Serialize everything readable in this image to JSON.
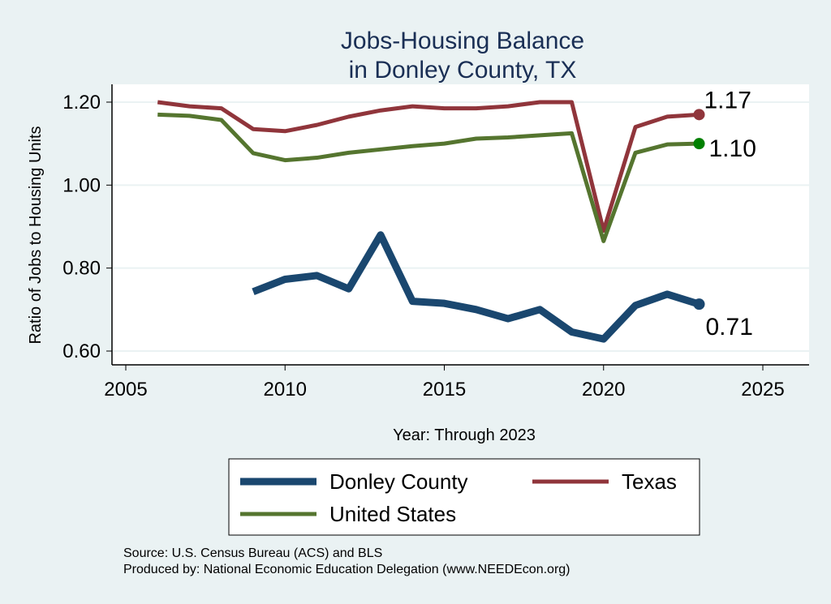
{
  "chart_data": {
    "type": "line",
    "title": [
      "Jobs-Housing Balance",
      "in Donley County, TX"
    ],
    "xlabel": "Year: Through 2023",
    "ylabel": "Ratio of Jobs to Housing Units",
    "xlim": [
      2005,
      2026
    ],
    "ylim": [
      0.57,
      1.235
    ],
    "xticks": [
      2005,
      2010,
      2015,
      2020,
      2025
    ],
    "yticks": [
      0.6,
      0.8,
      1.0,
      1.2
    ],
    "ytick_labels": [
      "0.60",
      "0.80",
      "1.00",
      "1.20"
    ],
    "grid": true,
    "legend_position": "bottom",
    "series": [
      {
        "name": "Donley County",
        "color": "#1a476f",
        "x": [
          2009,
          2010,
          2011,
          2012,
          2013,
          2014,
          2015,
          2016,
          2017,
          2018,
          2019,
          2020,
          2021,
          2022,
          2023
        ],
        "values": [
          0.743,
          0.773,
          0.782,
          0.75,
          0.88,
          0.72,
          0.715,
          0.7,
          0.678,
          0.7,
          0.646,
          0.629,
          0.71,
          0.737,
          0.713
        ],
        "end_label": "0.71",
        "end_marker_color": "#1a476f"
      },
      {
        "name": "Texas",
        "color": "#90353b",
        "x": [
          2006,
          2007,
          2008,
          2009,
          2010,
          2011,
          2012,
          2013,
          2014,
          2015,
          2016,
          2017,
          2018,
          2019,
          2020,
          2021,
          2022,
          2023
        ],
        "values": [
          1.2,
          1.19,
          1.185,
          1.135,
          1.13,
          1.145,
          1.165,
          1.18,
          1.19,
          1.185,
          1.185,
          1.19,
          1.2,
          1.2,
          0.89,
          1.14,
          1.165,
          1.17
        ],
        "end_label": "1.17",
        "end_marker_color": "#90353b"
      },
      {
        "name": "United States",
        "color": "#55752f",
        "x": [
          2006,
          2007,
          2008,
          2009,
          2010,
          2011,
          2012,
          2013,
          2014,
          2015,
          2016,
          2017,
          2018,
          2019,
          2020,
          2021,
          2022,
          2023
        ],
        "values": [
          1.17,
          1.167,
          1.157,
          1.077,
          1.06,
          1.066,
          1.078,
          1.086,
          1.094,
          1.1,
          1.112,
          1.115,
          1.12,
          1.125,
          0.865,
          1.078,
          1.098,
          1.1
        ],
        "end_label": "1.10",
        "end_marker_color": "#008000"
      }
    ]
  },
  "source": "Source: U.S. Census Bureau (ACS) and BLS",
  "produced_by": "Produced by: National Economic Education Delegation (www.NEEDEcon.org)"
}
